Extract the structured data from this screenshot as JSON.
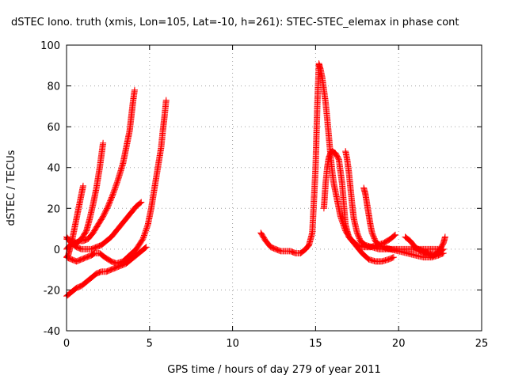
{
  "chart_data": {
    "type": "scatter",
    "title": "dSTEC Iono. truth (xmis, Lon=105, Lat=-10, h=261): STEC-STEC_elemax in phase cont",
    "xlabel": "GPS time / hours of day 279 of year 2011",
    "ylabel": "dSTEC  / TECUs",
    "xlim": [
      0,
      25
    ],
    "ylim": [
      -40,
      100
    ],
    "xticks": [
      0,
      5,
      10,
      15,
      20,
      25
    ],
    "yticks": [
      -40,
      -20,
      0,
      20,
      40,
      60,
      80,
      100
    ],
    "grid": true,
    "marker": "+",
    "color": "#ff0000",
    "series": [
      {
        "x": [
          0.0,
          0.1,
          0.2,
          0.3,
          0.4,
          0.5,
          0.6,
          0.7,
          0.8,
          0.9,
          1.0
        ],
        "y": [
          -4,
          -3,
          0,
          3,
          7,
          11,
          15,
          19,
          23,
          27,
          31
        ]
      },
      {
        "x": [
          0.0,
          0.3,
          0.6,
          0.9,
          1.2,
          1.4,
          1.6,
          1.8,
          2.0,
          2.2
        ],
        "y": [
          5,
          4,
          3,
          5,
          9,
          15,
          22,
          30,
          40,
          52
        ]
      },
      {
        "x": [
          0.0,
          0.2,
          0.5,
          0.8,
          1.0,
          1.3,
          1.6,
          1.9,
          2.2,
          2.5,
          2.8,
          3.1,
          3.4,
          3.6,
          3.8,
          3.9,
          4.0,
          4.1
        ],
        "y": [
          0,
          2,
          3,
          4,
          4,
          5,
          8,
          12,
          16,
          21,
          27,
          34,
          42,
          50,
          58,
          65,
          72,
          78
        ]
      },
      {
        "x": [
          0.0,
          0.3,
          0.6,
          0.9,
          1.2,
          1.5,
          1.8,
          2.1,
          2.4,
          2.7,
          3.0,
          3.3,
          3.6,
          3.9,
          4.2,
          4.5
        ],
        "y": [
          6,
          3,
          1,
          0,
          0,
          0,
          1,
          2,
          4,
          6,
          9,
          12,
          15,
          18,
          21,
          23
        ]
      },
      {
        "x": [
          0.0,
          0.3,
          0.6,
          0.9,
          1.2,
          1.5,
          1.7,
          2.0,
          2.3,
          2.7,
          3.0,
          3.4,
          3.8,
          4.2,
          4.6,
          4.9,
          5.1,
          5.3,
          5.5,
          5.7,
          5.8,
          5.9,
          6.0
        ],
        "y": [
          -4,
          -5,
          -6,
          -5,
          -4,
          -3,
          -2,
          -2,
          -4,
          -6,
          -7,
          -6,
          -3,
          0,
          5,
          12,
          20,
          30,
          40,
          50,
          58,
          65,
          73
        ]
      },
      {
        "x": [
          0.0,
          0.3,
          0.6,
          0.9,
          1.2,
          1.5,
          1.8,
          2.1,
          2.4,
          2.7,
          3.0,
          3.3,
          3.6,
          3.9,
          4.2,
          4.5,
          4.8
        ],
        "y": [
          -23,
          -21,
          -19,
          -18,
          -16,
          -14,
          -12,
          -11,
          -11,
          -10,
          -9,
          -8,
          -7,
          -5,
          -3,
          -1,
          1
        ]
      },
      {
        "x": [
          11.7,
          12.0,
          12.3,
          12.6,
          12.9,
          13.2,
          13.5,
          13.8,
          14.1,
          14.4,
          14.6
        ],
        "y": [
          8,
          4,
          1,
          0,
          -1,
          -1,
          -1,
          -2,
          -2,
          0,
          2
        ]
      },
      {
        "x": [
          14.6,
          14.8,
          15.0,
          15.1,
          15.2,
          15.3,
          15.4,
          15.5,
          15.6,
          15.7,
          15.8,
          15.9,
          16.0,
          16.1,
          16.3,
          16.5,
          16.8,
          17.1,
          17.5,
          17.9,
          18.3,
          18.7,
          19.1,
          19.5,
          19.8
        ],
        "y": [
          2,
          8,
          40,
          70,
          91,
          88,
          84,
          78,
          72,
          64,
          55,
          46,
          38,
          32,
          24,
          16,
          9,
          5,
          2,
          1,
          1,
          2,
          3,
          5,
          7
        ]
      },
      {
        "x": [
          15.5,
          15.6,
          15.7,
          15.8,
          15.9,
          16.0,
          16.2,
          16.4,
          16.6,
          16.8,
          17.0,
          17.4,
          17.8,
          18.2,
          18.6,
          19.0,
          19.4,
          19.7
        ],
        "y": [
          20,
          32,
          40,
          45,
          47,
          48,
          47,
          44,
          32,
          12,
          6,
          2,
          -2,
          -5,
          -6,
          -6,
          -5,
          -4
        ]
      },
      {
        "x": [
          16.8,
          16.9,
          17.0,
          17.1,
          17.2,
          17.3,
          17.5,
          17.7,
          18.0,
          18.4,
          18.8,
          19.2,
          19.6,
          20.0,
          20.5,
          21.0,
          21.5,
          22.0,
          22.5
        ],
        "y": [
          48,
          44,
          38,
          30,
          22,
          15,
          8,
          4,
          2,
          1,
          0,
          0,
          0,
          0,
          0,
          0,
          0,
          0,
          0
        ]
      },
      {
        "x": [
          17.9,
          18.0,
          18.1,
          18.2,
          18.3,
          18.4,
          18.6,
          18.8,
          19.1,
          19.5,
          20.0,
          20.5,
          21.0,
          21.5,
          22.0,
          22.4,
          22.7
        ],
        "y": [
          30,
          27,
          22,
          17,
          12,
          8,
          4,
          2,
          1,
          0,
          -1,
          -2,
          -3,
          -4,
          -4,
          -3,
          -2
        ]
      },
      {
        "x": [
          20.4,
          20.7,
          21.0,
          21.3,
          21.6,
          21.9,
          22.1,
          22.3,
          22.5,
          22.7,
          22.8
        ],
        "y": [
          6,
          4,
          1,
          -1,
          -2,
          -3,
          -3,
          -2,
          0,
          3,
          6
        ]
      },
      {
        "x": [
          20.9,
          21.2,
          21.5,
          21.8,
          22.1,
          22.4,
          22.7
        ],
        "y": [
          1,
          0,
          -1,
          -2,
          -3,
          -2,
          0
        ]
      }
    ]
  }
}
